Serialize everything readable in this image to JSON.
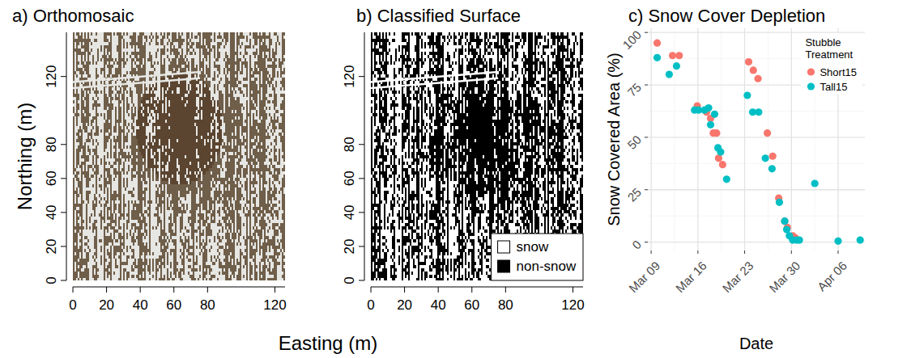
{
  "figure": {
    "x_label": "Easting (m)",
    "y_label": "Northing (m)"
  },
  "chart_data": [
    {
      "type": "image",
      "title": "a) Orthomosaic",
      "xlim": [
        0,
        126
      ],
      "ylim": [
        0,
        146
      ],
      "xticks": [
        0,
        20,
        40,
        60,
        80,
        120
      ],
      "yticks": [
        0,
        20,
        40,
        60,
        80,
        120
      ]
    },
    {
      "type": "image",
      "title": "b) Classified Surface",
      "xlim": [
        0,
        126
      ],
      "ylim": [
        0,
        146
      ],
      "xticks": [
        0,
        20,
        40,
        60,
        80,
        120
      ],
      "yticks": [
        0,
        20,
        40,
        60,
        80,
        120
      ],
      "legend": "bottom-right",
      "classes": [
        {
          "name": "snow",
          "color": "#ffffff"
        },
        {
          "name": "non-snow",
          "color": "#000000"
        }
      ]
    },
    {
      "type": "scatter",
      "title": "c) Snow Cover Depletion",
      "x_label": "Date",
      "y_label": "Snow Covered Area (%)",
      "xlim": [
        8.5,
        41
      ],
      "ylim": [
        -4,
        102
      ],
      "xticks": [
        {
          "value": 9,
          "label": "Mar 09"
        },
        {
          "value": 16,
          "label": "Mar 16"
        },
        {
          "value": 23,
          "label": "Mar 23"
        },
        {
          "value": 30,
          "label": "Mar 30"
        },
        {
          "value": 37,
          "label": "Apr 06"
        }
      ],
      "yticks": [
        0,
        25,
        50,
        75,
        100
      ],
      "grid": true,
      "legend": "top-right",
      "legend_title": "Stubble Treatment",
      "series": [
        {
          "name": "Short15",
          "color": "#F8766D",
          "x": [
            9.9,
            12.2,
            13.2,
            15.9,
            17.3,
            17.9,
            18.3,
            18.8,
            19.1,
            19.7,
            23.6,
            24.3,
            25.0,
            26.4,
            27.2,
            28.1,
            29.0,
            29.4,
            30.2,
            30.6
          ],
          "values": [
            95,
            89,
            89,
            65,
            62,
            59,
            52,
            52,
            40,
            37,
            86,
            82,
            78,
            52,
            41,
            21,
            10,
            7,
            3,
            2
          ]
        },
        {
          "name": "Tall15",
          "color": "#00BFC4",
          "x": [
            9.9,
            11.7,
            12.8,
            15.5,
            16.1,
            17.0,
            17.6,
            17.9,
            18.5,
            19.0,
            19.4,
            20.3,
            23.4,
            24.2,
            25.1,
            26.1,
            27.1,
            28.2,
            29.0,
            29.3,
            29.7,
            30.2,
            30.8,
            31.2,
            33.5,
            37.0,
            40.3
          ],
          "values": [
            88,
            80,
            84,
            63,
            63,
            63,
            64,
            56,
            61,
            45,
            43,
            30,
            70,
            62,
            62,
            40,
            35,
            19,
            10,
            6,
            3,
            1,
            1,
            1,
            28,
            0.5,
            1
          ]
        }
      ]
    }
  ]
}
